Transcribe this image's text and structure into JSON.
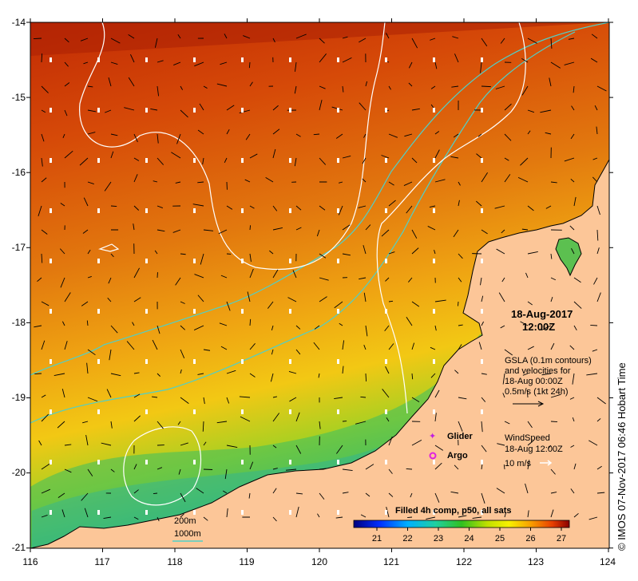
{
  "map": {
    "lon_ticks": [
      "116",
      "117",
      "118",
      "119",
      "120",
      "121",
      "122",
      "123",
      "124"
    ],
    "lat_ticks": [
      "-14",
      "-15",
      "-16",
      "-17",
      "-18",
      "-19",
      "-20",
      "-21"
    ],
    "date": "18-Aug-2017",
    "time": "12:00Z",
    "gsla_lines": [
      "GSLA (0.1m contours)",
      "and velocities for",
      "18-Aug 00:00Z",
      "0.5m/s (1kt 24h)"
    ],
    "legend": {
      "glider": "Glider",
      "argo": "Argo"
    },
    "wind_lines": [
      "WindSpeed",
      "18-Aug 12:00Z"
    ],
    "wind_scale": "10 m/s",
    "isobaths": {
      "a": "200m",
      "b": "1000m"
    },
    "colorbar": {
      "title": "Filled 4h comp, p50, all sats",
      "ticks": [
        "21",
        "22",
        "23",
        "24",
        "25",
        "26",
        "27"
      ],
      "range": [
        20.5,
        27.5
      ]
    },
    "credit": "© IMOS 07-Nov-2017 06:46 Hobart Time",
    "colors": {
      "land": "#fcc698",
      "contour": "#ffffff",
      "isobath": "#4fd0c8",
      "glider": "#c020e0",
      "argo": "#e020e0"
    }
  }
}
